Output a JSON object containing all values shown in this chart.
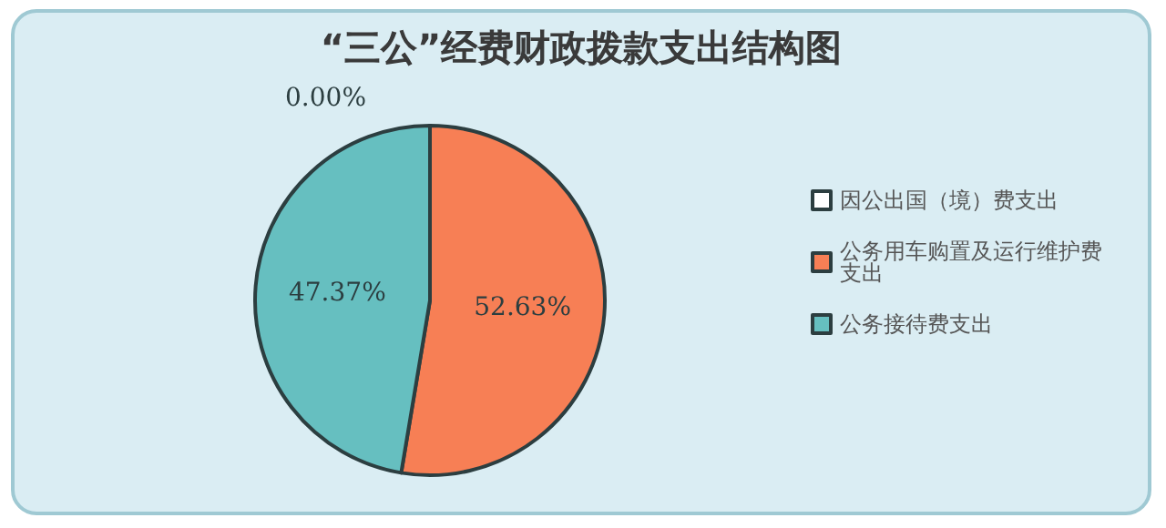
{
  "chart_data": {
    "type": "pie",
    "title": "“三公”经费财政拨款支出结构图",
    "categories": [
      "因公出国（境）费支出",
      "公务用车购置及运行维护费支出",
      "公务接待费支出"
    ],
    "values": [
      0,
      52.63,
      47.37
    ],
    "colors": [
      "#ffffff",
      "#f77f55",
      "#66bfc0"
    ],
    "value_labels": [
      "0.00%",
      "52.63%",
      "47.37%"
    ],
    "legend": "right"
  }
}
